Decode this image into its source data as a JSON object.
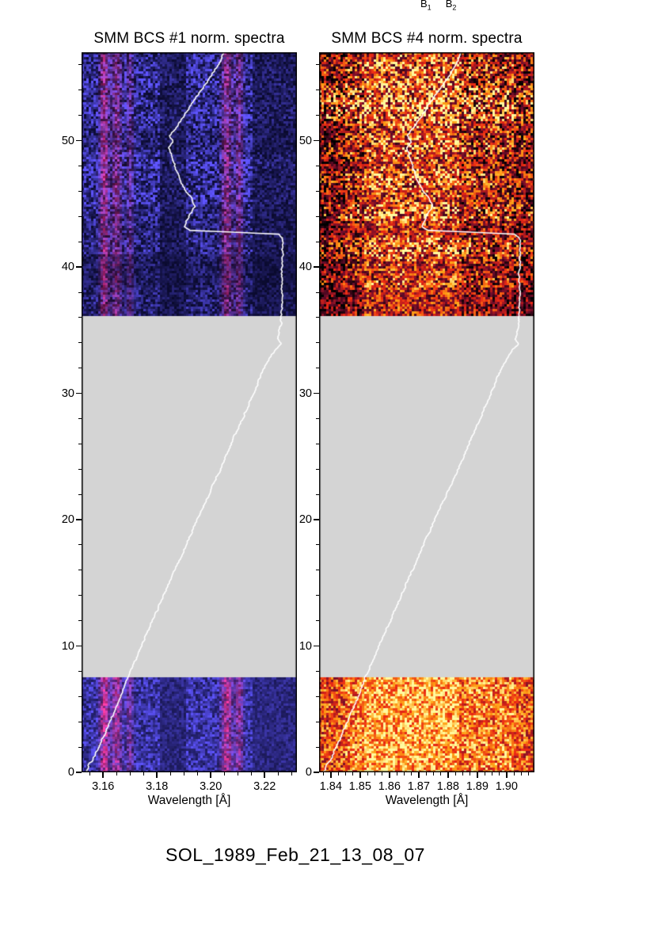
{
  "figure": {
    "background": "#ffffff",
    "top_labels": [
      {
        "base": "B",
        "sub": "1"
      },
      {
        "base": "B",
        "sub": "2"
      }
    ],
    "caption": "SOL_1989_Feb_21_13_08_07"
  },
  "chart_data": [
    {
      "type": "heatmap",
      "title": "SMM BCS #1 norm. spectra",
      "xlabel": "Wavelength [Å]",
      "ylabel": "",
      "xlim": [
        3.152,
        3.232
      ],
      "xticks": [
        3.16,
        3.18,
        3.2,
        3.22
      ],
      "xtick_labels": [
        "3.16",
        "3.18",
        "3.20",
        "3.22"
      ],
      "ylim": [
        0,
        57
      ],
      "yticks": [
        0,
        10,
        20,
        30,
        40,
        50
      ],
      "ytick_labels": [
        "0",
        "10",
        "20",
        "30",
        "40",
        "50"
      ],
      "grid": false,
      "legend_position": "none",
      "data_gap_t": [
        7.5,
        36.2
      ],
      "gap_color": "#d4d4d4",
      "palette": "blue",
      "seed": 1234567,
      "stripes": [
        {
          "wl": 3.1605,
          "width": 0.0015,
          "strength": 0.85
        },
        {
          "wl": 3.165,
          "width": 0.0018,
          "strength": 0.6
        },
        {
          "wl": 3.17,
          "width": 0.0012,
          "strength": 0.35
        },
        {
          "wl": 3.206,
          "width": 0.0018,
          "strength": 0.7
        },
        {
          "wl": 3.2105,
          "width": 0.0014,
          "strength": 0.5
        }
      ],
      "dark_bands_wl": [
        [
          3.2155,
          3.232
        ],
        [
          3.181,
          3.1905
        ]
      ],
      "overlay_curve_color": "#ffffff",
      "overlay": "light_curve"
    },
    {
      "type": "heatmap",
      "title": "SMM BCS #4 norm. spectra",
      "xlabel": "Wavelength [Å]",
      "ylabel": "",
      "xlim": [
        1.836,
        1.9095
      ],
      "xticks": [
        1.84,
        1.85,
        1.86,
        1.87,
        1.88,
        1.89,
        1.9
      ],
      "xtick_labels": [
        "1.84",
        "1.85",
        "1.86",
        "1.87",
        "1.88",
        "1.89",
        "1.90"
      ],
      "ylim": [
        0,
        57
      ],
      "yticks": [
        0,
        10,
        20,
        30,
        40,
        50
      ],
      "ytick_labels": [
        "0",
        "10",
        "20",
        "30",
        "40",
        "50"
      ],
      "grid": false,
      "legend_position": "none",
      "data_gap_t": [
        7.5,
        36.2
      ],
      "gap_color": "#d4d4d4",
      "palette": "fire",
      "seed": 987654,
      "bright_bands_wl": [
        [
          1.851,
          1.884
        ]
      ],
      "overlay_curve_color": "#ffffff",
      "overlay": "light_curve"
    }
  ],
  "light_curve": {
    "description": "normalized flux vs time, plotted with time on the y axis (white curve in both panels)",
    "points_t_f": [
      [
        0,
        0.015
      ],
      [
        0.2,
        0.022
      ],
      [
        0.63,
        0.022
      ],
      [
        0.94,
        0.048
      ],
      [
        1.6,
        0.063
      ],
      [
        3.4,
        0.11
      ],
      [
        5.5,
        0.165
      ],
      [
        7.5,
        0.21
      ],
      [
        9.6,
        0.265
      ],
      [
        11.7,
        0.32
      ],
      [
        13.8,
        0.375
      ],
      [
        15.9,
        0.43
      ],
      [
        18.0,
        0.485
      ],
      [
        20.1,
        0.54
      ],
      [
        22.1,
        0.595
      ],
      [
        24.1,
        0.65
      ],
      [
        26.3,
        0.705
      ],
      [
        28.1,
        0.754
      ],
      [
        29.9,
        0.8
      ],
      [
        31.6,
        0.842
      ],
      [
        32.8,
        0.879
      ],
      [
        33.5,
        0.908
      ],
      [
        33.9,
        0.934
      ],
      [
        34.3,
        0.916
      ],
      [
        34.8,
        0.923
      ],
      [
        35.5,
        0.934
      ],
      [
        36.3,
        0.934
      ],
      [
        37.9,
        0.938
      ],
      [
        39.5,
        0.934
      ],
      [
        41.0,
        0.941
      ],
      [
        42.3,
        0.938
      ],
      [
        42.6,
        0.919
      ],
      [
        42.75,
        0.724
      ],
      [
        42.9,
        0.504
      ],
      [
        43.2,
        0.478
      ],
      [
        44.0,
        0.496
      ],
      [
        44.8,
        0.526
      ],
      [
        45.4,
        0.511
      ],
      [
        46.2,
        0.478
      ],
      [
        47.0,
        0.452
      ],
      [
        47.9,
        0.434
      ],
      [
        48.8,
        0.419
      ],
      [
        49.4,
        0.404
      ],
      [
        49.9,
        0.426
      ],
      [
        50.4,
        0.408
      ],
      [
        51.2,
        0.445
      ],
      [
        51.9,
        0.474
      ],
      [
        52.8,
        0.507
      ],
      [
        53.7,
        0.544
      ],
      [
        54.6,
        0.581
      ],
      [
        55.5,
        0.618
      ],
      [
        56.3,
        0.647
      ],
      [
        57.0,
        0.662
      ]
    ]
  }
}
